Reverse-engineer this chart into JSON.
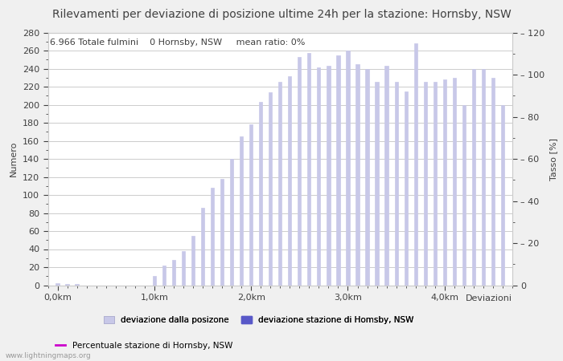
{
  "title": "Rilevamenti per deviazione di posizione ultime 24h per la stazione: Hornsby, NSW",
  "ylabel_left": "Numero",
  "ylabel_right": "Tasso [%]",
  "xlabel": "Deviazioni",
  "info_text": "6.966 Totale fulmini    0 Hornsby, NSW     mean ratio: 0%",
  "watermark": "www.lightningmaps.org",
  "ylim_left": [
    0,
    280
  ],
  "ylim_right": [
    0,
    120
  ],
  "yticks_left_major": [
    0,
    20,
    40,
    60,
    80,
    100,
    120,
    140,
    160,
    180,
    200,
    220,
    240,
    260,
    280
  ],
  "yticks_right_major": [
    0,
    20,
    40,
    60,
    80,
    100,
    120
  ],
  "yticks_right_minor": [
    10,
    30,
    50,
    70,
    90,
    110
  ],
  "xtick_labels": [
    "0,0km",
    "1,0km",
    "2,0km",
    "3,0km",
    "4,0km"
  ],
  "xtick_positions": [
    0,
    10,
    20,
    30,
    40
  ],
  "bar_values": [
    2,
    1,
    1,
    0,
    0,
    0,
    0,
    0,
    0,
    0,
    10,
    22,
    28,
    38,
    55,
    86,
    108,
    118,
    140,
    165,
    178,
    203,
    214,
    225,
    232,
    253,
    257,
    241,
    243,
    255,
    260,
    245,
    240,
    225,
    243,
    225,
    215,
    268,
    225,
    225,
    228,
    230,
    200,
    240,
    240,
    230,
    200
  ],
  "bar_color_light": "#c8c8e8",
  "bar_color_dark": "#5858c8",
  "bar_width": 0.35,
  "legend_label_light": "deviazione dalla posizone",
  "legend_label_dark": "deviazione stazione di Homsby, NSW",
  "legend_label_line": "Percentuale stazione di Hornsby, NSW",
  "line_color": "#cc00cc",
  "bg_color": "#f0f0f0",
  "plot_bg_color": "#ffffff",
  "grid_color": "#cccccc",
  "font_color": "#404040",
  "title_fontsize": 10,
  "axis_fontsize": 8,
  "tick_fontsize": 8,
  "info_fontsize": 8
}
